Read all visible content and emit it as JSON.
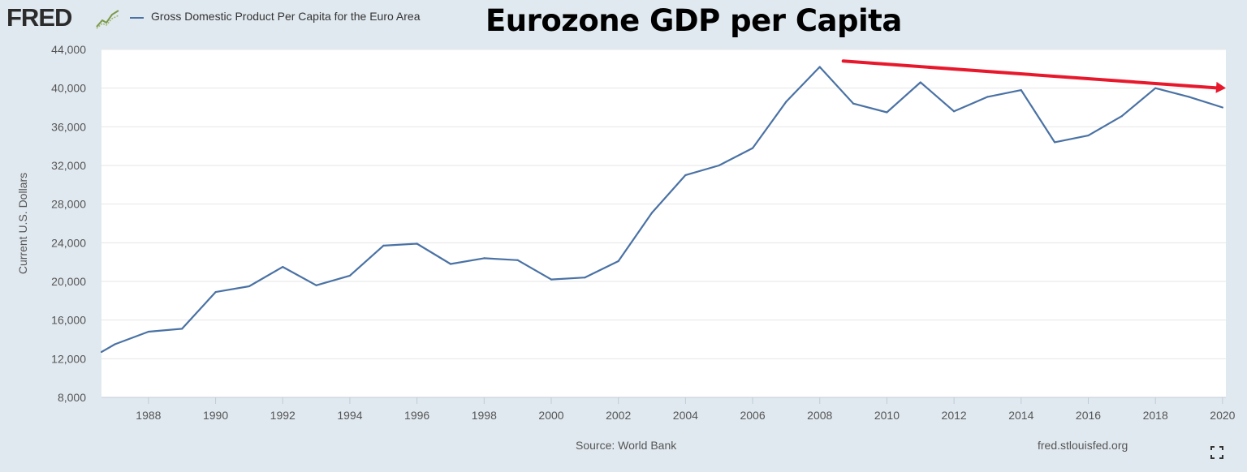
{
  "header": {
    "logo_text": "FRED",
    "legend_label": "Gross Domestic Product Per Capita for the Euro Area",
    "overlay_title": "Eurozone GDP per Capita"
  },
  "footer": {
    "source": "Source: World Bank",
    "url": "fred.stlouisfed.org"
  },
  "colors": {
    "line": "#4a72a4",
    "trend_arrow": "#e8182c",
    "plot_bg": "#ffffff",
    "page_bg": "#e1e9f0",
    "grid": "#e6e6e6"
  },
  "icons": [
    "fred-logo-graph-icon",
    "fullscreen-icon"
  ],
  "chart_data": {
    "type": "line",
    "title": "Eurozone GDP per Capita",
    "xlabel": "",
    "ylabel": "Current U.S. Dollars",
    "xlim": [
      1986.6,
      2020.1
    ],
    "ylim": [
      8000,
      44000
    ],
    "grid": true,
    "legend_position": "top-left",
    "y_ticks": [
      8000,
      12000,
      16000,
      20000,
      24000,
      28000,
      32000,
      36000,
      40000,
      44000
    ],
    "y_tick_labels": [
      "8,000",
      "12,000",
      "16,000",
      "20,000",
      "24,000",
      "28,000",
      "32,000",
      "36,000",
      "40,000",
      "44,000"
    ],
    "x_ticks": [
      1988,
      1990,
      1992,
      1994,
      1996,
      1998,
      2000,
      2002,
      2004,
      2006,
      2008,
      2010,
      2012,
      2014,
      2016,
      2018,
      2020
    ],
    "x_tick_labels": [
      "1988",
      "1990",
      "1992",
      "1994",
      "1996",
      "1998",
      "2000",
      "2002",
      "2004",
      "2006",
      "2008",
      "2010",
      "2012",
      "2014",
      "2016",
      "2018",
      "2020"
    ],
    "series": [
      {
        "name": "Gross Domestic Product Per Capita for the Euro Area",
        "x": [
          1986.6,
          1987,
          1988,
          1989,
          1990,
          1991,
          1992,
          1993,
          1994,
          1995,
          1996,
          1997,
          1998,
          1999,
          2000,
          2001,
          2002,
          2003,
          2004,
          2005,
          2006,
          2007,
          2008,
          2009,
          2010,
          2011,
          2012,
          2013,
          2014,
          2015,
          2016,
          2017,
          2018,
          2019,
          2020
        ],
        "y": [
          12700,
          13500,
          14800,
          15100,
          18900,
          19500,
          21500,
          19600,
          20600,
          23700,
          23900,
          21800,
          22400,
          22200,
          20200,
          20400,
          22100,
          27100,
          31000,
          32000,
          33800,
          38600,
          42200,
          38400,
          37500,
          40600,
          37600,
          39100,
          39800,
          34400,
          35100,
          37100,
          40000,
          39100,
          38000
        ]
      }
    ],
    "annotations": [
      {
        "type": "arrow",
        "from": [
          2008.7,
          42800
        ],
        "to": [
          2020.1,
          40000
        ],
        "color": "#e8182c"
      }
    ]
  }
}
